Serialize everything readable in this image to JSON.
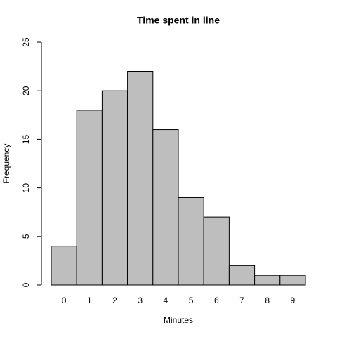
{
  "chart_data": {
    "type": "bar",
    "title": "Time spent in line",
    "x_label": "Minutes",
    "y_label": "Frequency",
    "categories": [
      "0",
      "1",
      "2",
      "3",
      "4",
      "5",
      "6",
      "7",
      "8",
      "9"
    ],
    "values": [
      4,
      18,
      20,
      22,
      16,
      9,
      7,
      2,
      1,
      1
    ],
    "color": "#bebebe",
    "ylim": [
      0,
      25
    ],
    "yticks": [
      0,
      5,
      10,
      15,
      20,
      25
    ],
    "grid": false
  }
}
